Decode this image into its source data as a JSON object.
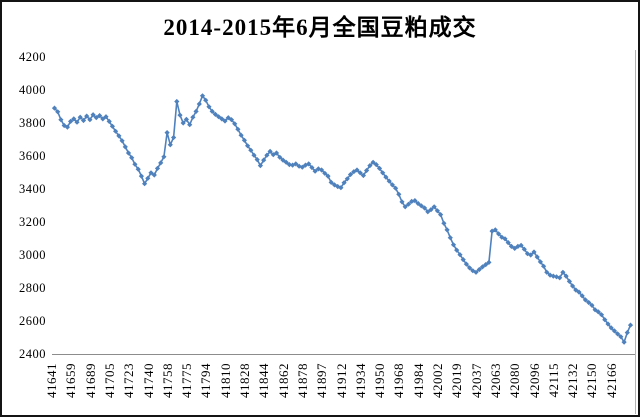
{
  "chart_data": {
    "type": "line",
    "title": "2014-2015年6月全国豆粕成交",
    "series": [
      {
        "color": "#4F81BD",
        "marker": "diamond",
        "values": [
          3890,
          3868,
          3820,
          3785,
          3775,
          3810,
          3825,
          3805,
          3835,
          3815,
          3842,
          3820,
          3850,
          3833,
          3845,
          3825,
          3838,
          3810,
          3780,
          3750,
          3722,
          3692,
          3655,
          3618,
          3590,
          3550,
          3520,
          3478,
          3432,
          3465,
          3498,
          3485,
          3525,
          3558,
          3595,
          3742,
          3668,
          3712,
          3930,
          3848,
          3800,
          3822,
          3790,
          3835,
          3870,
          3915,
          3965,
          3938,
          3898,
          3870,
          3852,
          3838,
          3825,
          3812,
          3832,
          3820,
          3795,
          3762,
          3726,
          3695,
          3662,
          3635,
          3605,
          3578,
          3542,
          3575,
          3605,
          3628,
          3608,
          3618,
          3592,
          3575,
          3562,
          3548,
          3545,
          3552,
          3538,
          3532,
          3545,
          3552,
          3530,
          3508,
          3522,
          3515,
          3495,
          3478,
          3440,
          3425,
          3415,
          3408,
          3438,
          3462,
          3488,
          3505,
          3515,
          3498,
          3482,
          3512,
          3542,
          3562,
          3548,
          3525,
          3498,
          3472,
          3448,
          3425,
          3405,
          3368,
          3322,
          3292,
          3308,
          3325,
          3330,
          3312,
          3298,
          3285,
          3262,
          3275,
          3292,
          3268,
          3245,
          3192,
          3152,
          3105,
          3062,
          3030,
          3002,
          2972,
          2945,
          2922,
          2905,
          2895,
          2912,
          2928,
          2942,
          2955,
          3145,
          3152,
          3128,
          3108,
          3098,
          3075,
          3052,
          3040,
          3052,
          3058,
          3035,
          3008,
          3000,
          3018,
          2988,
          2958,
          2932,
          2895,
          2878,
          2872,
          2868,
          2862,
          2895,
          2872,
          2840,
          2812,
          2788,
          2775,
          2752,
          2728,
          2712,
          2695,
          2668,
          2655,
          2638,
          2608,
          2582,
          2558,
          2540,
          2522,
          2505,
          2472,
          2530,
          2575
        ]
      }
    ],
    "x_tick_labels": [
      "41641",
      "41659",
      "41689",
      "41705",
      "41723",
      "41740",
      "41758",
      "41775",
      "41794",
      "41810",
      "41828",
      "41844",
      "41862",
      "41878",
      "41897",
      "41912",
      "41934",
      "41950",
      "41968",
      "41984",
      "42002",
      "42019",
      "42037",
      "42063",
      "42080",
      "42096",
      "42115",
      "42132",
      "42150",
      "42166"
    ],
    "y_tick_labels": [
      "4200",
      "4000",
      "3800",
      "3600",
      "3400",
      "3200",
      "3000",
      "2800",
      "2600",
      "2400"
    ],
    "ylim": [
      2400,
      4200
    ],
    "grid": false,
    "legend_position": "none",
    "axis_color": "#8c8c8c",
    "frame_color": "#141414",
    "background": "#ffffff"
  }
}
